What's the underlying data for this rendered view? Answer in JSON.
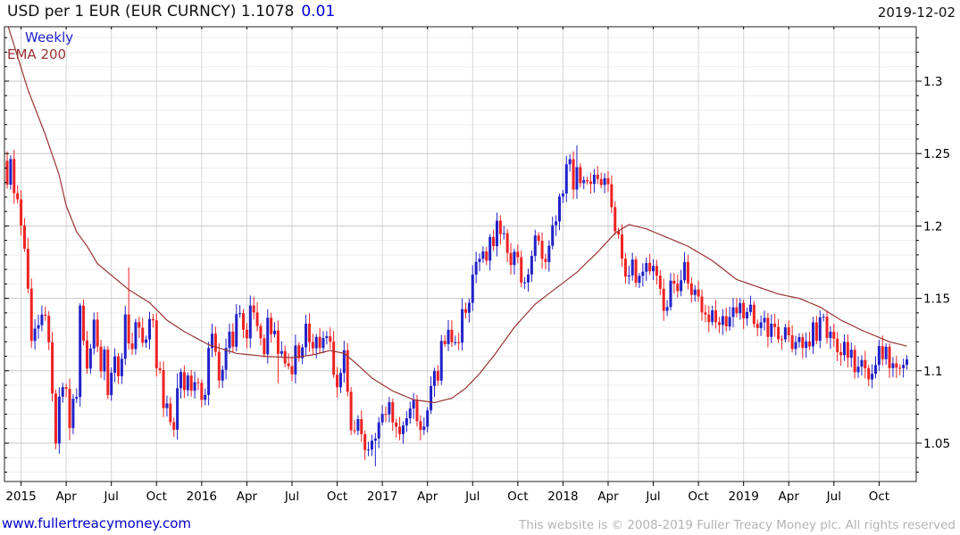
{
  "header": {
    "title": "USD per 1 EUR (EUR CURNCY) 1.1078",
    "change": "0.01",
    "date": "2019-12-02"
  },
  "legend": {
    "timeframe": "Weekly",
    "overlay": "EMA 200"
  },
  "footer": {
    "website": "www.fullertreacymoney.com",
    "copyright": "This website is © 2008-2019 Fuller Treacy Money plc. All rights reserved"
  },
  "colors": {
    "up_candle": "#2121c8",
    "down_candle": "#ee2222",
    "ema_line": "#993333",
    "grid_minor": "#ededed",
    "grid_major": "#c8c8c8",
    "grid_vertical": "#d6d6d6",
    "border": "#222222",
    "change_text": "#0000dd",
    "link_text": "#0000cc",
    "copyright_text": "#b3b3b3"
  },
  "chart_data": {
    "type": "candlestick",
    "instrument": "USD per 1 EUR (EUR CURNCY)",
    "timeframe": "weekly",
    "last_price": 1.1078,
    "change": 0.01,
    "as_of": "2019-12-02",
    "x_start": "2014-12",
    "x_end": "2019-12",
    "ylim": [
      1.0235,
      1.3376
    ],
    "y_major_ticks": [
      1.3,
      1.25,
      1.2,
      1.15,
      1.1,
      1.05
    ],
    "y_tick_labels": [
      "1.3",
      "1.25",
      "1.2",
      "1.15",
      "1.1",
      "1.05"
    ],
    "y_minor_step": 0.01,
    "grid": true,
    "legend_position": "top-left",
    "x_ticks": [
      {
        "week": 4,
        "label": "2015"
      },
      {
        "week": 17,
        "label": "Apr"
      },
      {
        "week": 30,
        "label": "Jul"
      },
      {
        "week": 43,
        "label": "Oct"
      },
      {
        "week": 56,
        "label": "2016"
      },
      {
        "week": 69,
        "label": "Apr"
      },
      {
        "week": 82,
        "label": "Jul"
      },
      {
        "week": 95,
        "label": "Oct"
      },
      {
        "week": 108,
        "label": "2017"
      },
      {
        "week": 121,
        "label": "Apr"
      },
      {
        "week": 134,
        "label": "Jul"
      },
      {
        "week": 147,
        "label": "Oct"
      },
      {
        "week": 160,
        "label": "2018"
      },
      {
        "week": 173,
        "label": "Apr"
      },
      {
        "week": 186,
        "label": "Jul"
      },
      {
        "week": 199,
        "label": "Oct"
      },
      {
        "week": 212,
        "label": "2019"
      },
      {
        "week": 225,
        "label": "Apr"
      },
      {
        "week": 238,
        "label": "Jul"
      },
      {
        "week": 251,
        "label": "Oct"
      }
    ],
    "first_open": 1.245,
    "ohlc_note": "weekly closes read from chart; open = prior close; wick extremes approximate except wick_overrides",
    "weekly_closes": [
      1.2285,
      1.2462,
      1.2226,
      1.2184,
      1.2003,
      1.1843,
      1.1567,
      1.1206,
      1.1291,
      1.1315,
      1.1388,
      1.138,
      1.1197,
      1.0843,
      1.0497,
      1.0821,
      1.0887,
      1.0876,
      1.0604,
      1.0807,
      1.0819,
      1.145,
      1.1208,
      1.1015,
      1.1154,
      1.1353,
      1.1167,
      1.0996,
      1.1146,
      1.0832,
      1.0986,
      1.11,
      1.0962,
      1.1083,
      1.1389,
      1.1189,
      1.115,
      1.1336,
      1.1297,
      1.1193,
      1.1216,
      1.1357,
      1.1348,
      1.1017,
      1.1005,
      1.0742,
      1.0774,
      1.0645,
      1.0593,
      1.088,
      1.0991,
      1.0866,
      1.0967,
      1.0862,
      1.0921,
      1.0916,
      1.0799,
      1.0833,
      1.1157,
      1.1256,
      1.1131,
      1.0932,
      1.1007,
      1.1157,
      1.127,
      1.1166,
      1.1391,
      1.1398,
      1.1283,
      1.1224,
      1.1451,
      1.1403,
      1.1308,
      1.1224,
      1.1114,
      1.1366,
      1.1252,
      1.1277,
      1.1117,
      1.1136,
      1.1051,
      1.1032,
      1.0975,
      1.1175,
      1.1087,
      1.1162,
      1.1325,
      1.1198,
      1.1155,
      1.1234,
      1.1157,
      1.1226,
      1.1238,
      1.1201,
      1.0972,
      1.0886,
      1.0985,
      1.1142,
      1.0855,
      1.0589,
      1.0586,
      1.0666,
      1.0562,
      1.0452,
      1.0456,
      1.0517,
      1.0532,
      1.0643,
      1.0702,
      1.0699,
      1.0783,
      1.0643,
      1.0613,
      1.0563,
      1.0622,
      1.0672,
      1.0739,
      1.0798,
      1.0652,
      1.0591,
      1.0614,
      1.0726,
      1.0895,
      1.0998,
      1.0932,
      1.1206,
      1.1184,
      1.1283,
      1.1196,
      1.1197,
      1.1194,
      1.1426,
      1.1401,
      1.1469,
      1.1664,
      1.1752,
      1.1773,
      1.1824,
      1.176,
      1.1924,
      1.186,
      1.2036,
      1.1944,
      1.195,
      1.1814,
      1.173,
      1.1822,
      1.1784,
      1.1609,
      1.161,
      1.1665,
      1.1793,
      1.1934,
      1.1897,
      1.1773,
      1.1751,
      1.1863,
      1.2005,
      1.2031,
      1.2203,
      1.2224,
      1.2426,
      1.2461,
      1.2252,
      1.2406,
      1.2295,
      1.2316,
      1.2307,
      1.229,
      1.2354,
      1.2324,
      1.2283,
      1.233,
      1.2288,
      1.213,
      1.1963,
      1.1941,
      1.1774,
      1.165,
      1.1659,
      1.1768,
      1.1607,
      1.1655,
      1.1684,
      1.1744,
      1.1687,
      1.1724,
      1.1657,
      1.1566,
      1.1414,
      1.144,
      1.1622,
      1.1601,
      1.155,
      1.1625,
      1.1751,
      1.1604,
      1.1524,
      1.1561,
      1.1513,
      1.1403,
      1.1388,
      1.1336,
      1.1417,
      1.1335,
      1.1317,
      1.1377,
      1.1306,
      1.1372,
      1.1438,
      1.1397,
      1.1468,
      1.1362,
      1.1406,
      1.1456,
      1.1324,
      1.1295,
      1.1335,
      1.1365,
      1.1234,
      1.1325,
      1.1302,
      1.1218,
      1.1217,
      1.13,
      1.1245,
      1.115,
      1.1198,
      1.1232,
      1.1158,
      1.1203,
      1.1168,
      1.1334,
      1.1207,
      1.1369,
      1.1373,
      1.1226,
      1.127,
      1.1221,
      1.1128,
      1.1108,
      1.1199,
      1.109,
      1.1145,
      1.099,
      1.1028,
      1.1074,
      1.1017,
      1.094,
      1.0979,
      1.104,
      1.117,
      1.108,
      1.1166,
      1.1018,
      1.1051,
      1.1021,
      1.1018,
      1.1041,
      1.1078
    ],
    "wick_overrides": {
      "14": {
        "low": 1.0458
      },
      "18": {
        "low": 1.0521
      },
      "21": {
        "high": 1.1467
      },
      "35": {
        "high": 1.1714
      },
      "49": {
        "low": 1.0524,
        "high": 1.0981
      },
      "78": {
        "low": 1.0913
      },
      "106": {
        "low": 1.034
      },
      "141": {
        "high": 1.2092
      },
      "164": {
        "high": 1.2556
      },
      "249": {
        "low": 1.0879
      }
    },
    "ema": {
      "label": "EMA 200",
      "anchors": [
        [
          0,
          1.34
        ],
        [
          6,
          1.294
        ],
        [
          11,
          1.263
        ],
        [
          15,
          1.235
        ],
        [
          17,
          1.214
        ],
        [
          20,
          1.196
        ],
        [
          23,
          1.186
        ],
        [
          26,
          1.174
        ],
        [
          30,
          1.166
        ],
        [
          35,
          1.156
        ],
        [
          41,
          1.147
        ],
        [
          46,
          1.135
        ],
        [
          51,
          1.127
        ],
        [
          58,
          1.118
        ],
        [
          66,
          1.112
        ],
        [
          74,
          1.11
        ],
        [
          82,
          1.109
        ],
        [
          88,
          1.111
        ],
        [
          93,
          1.114
        ],
        [
          97,
          1.112
        ],
        [
          100,
          1.106
        ],
        [
          105,
          1.095
        ],
        [
          111,
          1.086
        ],
        [
          117,
          1.08
        ],
        [
          123,
          1.078
        ],
        [
          128,
          1.081
        ],
        [
          132,
          1.088
        ],
        [
          136,
          1.098
        ],
        [
          140,
          1.11
        ],
        [
          146,
          1.13
        ],
        [
          152,
          1.146
        ],
        [
          158,
          1.157
        ],
        [
          164,
          1.168
        ],
        [
          170,
          1.182
        ],
        [
          175,
          1.195
        ],
        [
          179,
          1.201
        ],
        [
          184,
          1.198
        ],
        [
          190,
          1.192
        ],
        [
          196,
          1.186
        ],
        [
          203,
          1.176
        ],
        [
          210,
          1.163
        ],
        [
          216,
          1.158
        ],
        [
          222,
          1.153
        ],
        [
          228,
          1.15
        ],
        [
          234,
          1.144
        ],
        [
          240,
          1.135
        ],
        [
          246,
          1.128
        ],
        [
          250,
          1.124
        ],
        [
          254,
          1.12
        ],
        [
          259,
          1.117
        ]
      ]
    }
  }
}
